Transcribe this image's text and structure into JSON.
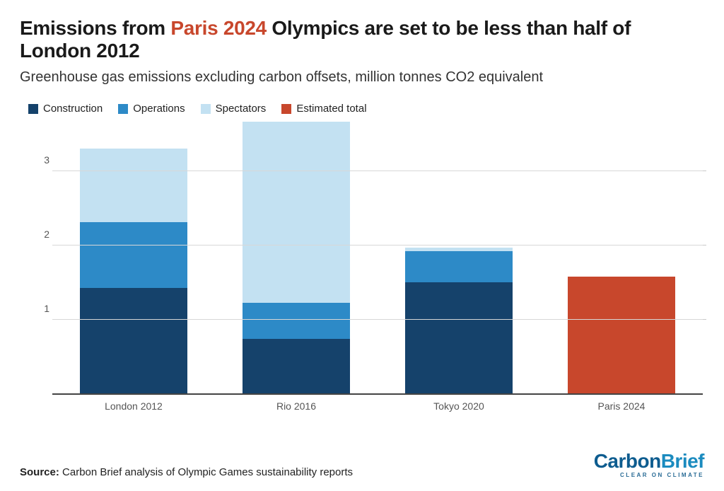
{
  "title_pre": "Emissions from ",
  "title_hl": "Paris 2024",
  "title_post": " Olympics are set to be less than half of London 2012",
  "subtitle": "Greenhouse gas emissions excluding carbon offsets, million tonnes CO2 equivalent",
  "legend": {
    "construction": "Construction",
    "operations": "Operations",
    "spectators": "Spectators",
    "estimated": "Estimated total"
  },
  "colors": {
    "construction": "#15426b",
    "operations": "#2d8ac7",
    "spectators": "#c3e1f2",
    "estimated": "#c8472c",
    "grid": "#d7d7d7",
    "axis": "#444444"
  },
  "chart": {
    "type": "stacked-bar",
    "y_max": 3.7,
    "y_ticks": [
      1,
      2,
      3
    ],
    "bar_width_pct": 75,
    "background_color": "#ffffff",
    "bars": [
      {
        "label": "London 2012",
        "segments": [
          {
            "series": "construction",
            "value": 1.42
          },
          {
            "series": "operations",
            "value": 0.89
          },
          {
            "series": "spectators",
            "value": 0.99
          }
        ]
      },
      {
        "label": "Rio 2016",
        "segments": [
          {
            "series": "construction",
            "value": 0.74
          },
          {
            "series": "operations",
            "value": 0.48
          },
          {
            "series": "spectators",
            "value": 2.45
          }
        ]
      },
      {
        "label": "Tokyo 2020",
        "segments": [
          {
            "series": "construction",
            "value": 1.5
          },
          {
            "series": "operations",
            "value": 0.42
          },
          {
            "series": "spectators",
            "value": 0.05
          }
        ]
      },
      {
        "label": "Paris 2024",
        "segments": [
          {
            "series": "estimated",
            "value": 1.58
          }
        ]
      }
    ]
  },
  "source_label": "Source:",
  "source_text": " Carbon Brief analysis of Olympic Games sustainability reports",
  "logo": {
    "part1": "Carbon",
    "part2": "Brief",
    "tagline": "CLEAR ON CLIMATE"
  }
}
